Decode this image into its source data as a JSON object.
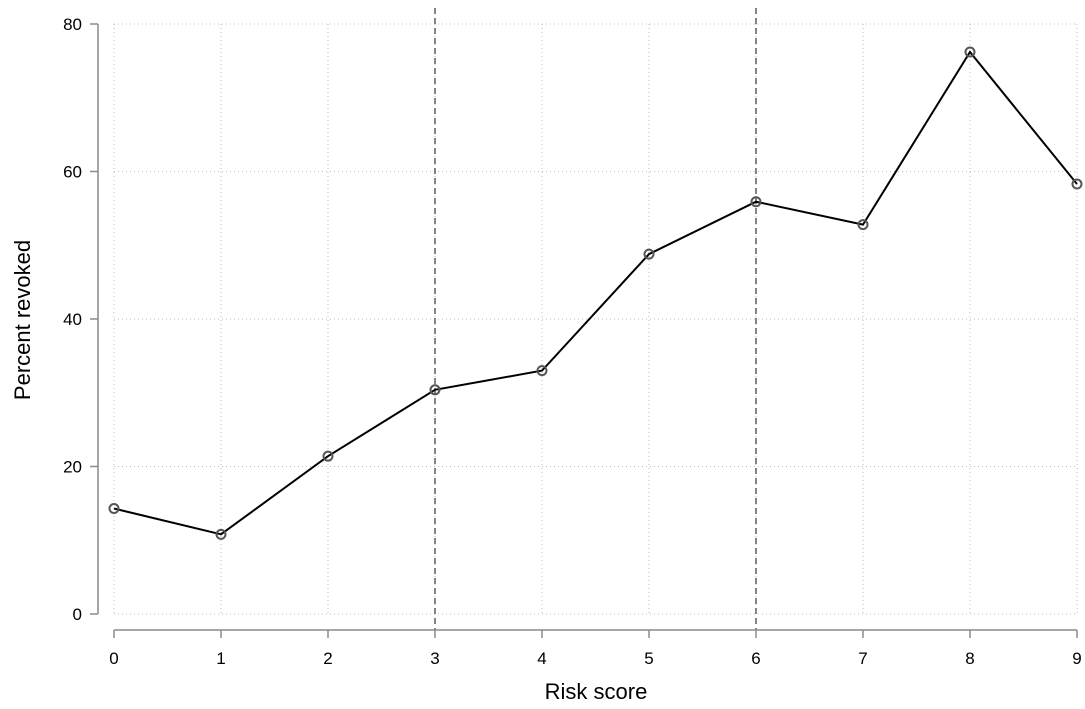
{
  "chart_data": {
    "type": "line",
    "xlabel": "Risk score",
    "ylabel": "Percent revoked",
    "x": [
      0,
      1,
      2,
      3,
      4,
      5,
      6,
      7,
      8,
      9
    ],
    "series": [
      {
        "values": [
          14.3,
          10.8,
          21.4,
          30.4,
          33.0,
          48.8,
          55.9,
          52.8,
          76.2,
          58.3
        ]
      }
    ],
    "xlim": [
      0,
      9
    ],
    "ylim": [
      0,
      80
    ],
    "xticks": [
      0,
      1,
      2,
      3,
      4,
      5,
      6,
      7,
      8,
      9
    ],
    "yticks": [
      0,
      20,
      40,
      60,
      80
    ],
    "reference_lines_x": [
      3,
      6
    ],
    "grid": true,
    "grid_style": "dotted",
    "marker": "hollow-circle",
    "colors": {
      "line": "#000000",
      "marker": "#555555",
      "reference_line": "#666666",
      "grid": "#bdbdbd",
      "axis": "#8a8a8a"
    }
  }
}
